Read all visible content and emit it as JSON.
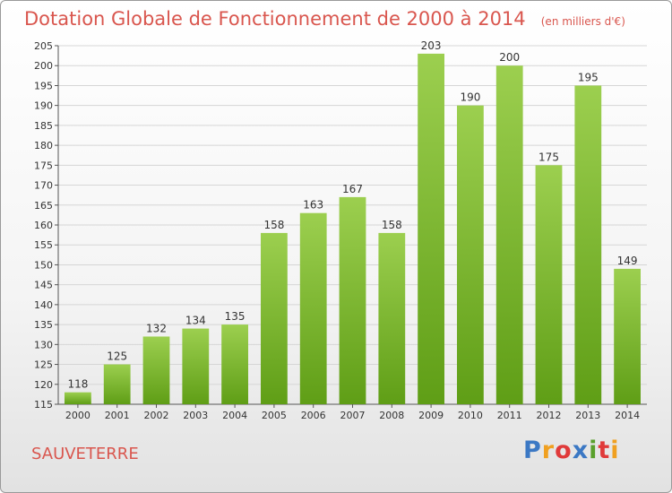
{
  "chart_data": {
    "type": "bar",
    "title": "Dotation Globale de Fonctionnement de 2000 à 2014",
    "unit": "(en milliers d'€)",
    "categories": [
      "2000",
      "2001",
      "2002",
      "2003",
      "2004",
      "2005",
      "2006",
      "2007",
      "2008",
      "2009",
      "2010",
      "2011",
      "2012",
      "2013",
      "2014"
    ],
    "values": [
      118,
      125,
      132,
      134,
      135,
      158,
      163,
      167,
      158,
      203,
      190,
      200,
      175,
      195,
      149
    ],
    "ylim": [
      115,
      205
    ],
    "ytick_step": 5,
    "grid": true,
    "colors": {
      "bar_top": "#9ccf4f",
      "bar_bottom": "#5f9e16",
      "grid": "#d6d6d6",
      "text": "#333333"
    }
  },
  "city": "SAUVETERRE",
  "logo": {
    "letters": [
      "P",
      "r",
      "o",
      "x",
      "i",
      "t",
      "i"
    ],
    "colors": [
      "#3b78c4",
      "#f0a020",
      "#e03a3a",
      "#3b78c4",
      "#5aa02c",
      "#e03a3a",
      "#f0a020"
    ]
  }
}
